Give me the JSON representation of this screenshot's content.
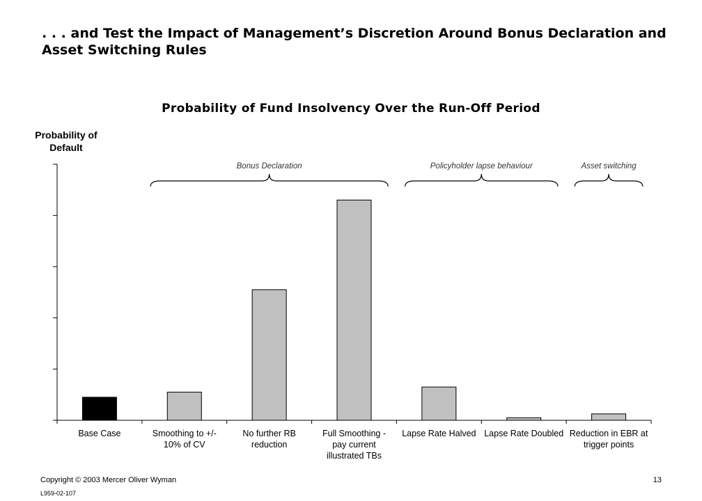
{
  "slide": {
    "title": ". . . and Test the Impact of Management’s Discretion Around Bonus Declaration and Asset Switching Rules"
  },
  "footer": {
    "copyright": "Copyright © 2003 Mercer Oliver Wyman",
    "reference": "L959-02-107",
    "page_number": "13"
  },
  "chart_data": {
    "type": "bar",
    "title": "Probability of Fund Insolvency Over the Run-Off Period",
    "ylabel": "Probability of Default",
    "xlabel": "",
    "ylim": [
      0,
      100
    ],
    "ytick_count": 5,
    "grid": false,
    "categories": [
      "Base Case",
      "Smoothing to +/- 10% of CV",
      "No further RB reduction",
      "Full Smoothing - pay current illustrated TBs",
      "Lapse Rate Halved",
      "Lapse Rate Doubled",
      "Reduction in EBR at trigger points"
    ],
    "category_lines": [
      [
        "Base Case"
      ],
      [
        "Smoothing to +/-",
        "10% of CV"
      ],
      [
        "No further RB",
        "reduction"
      ],
      [
        "Full Smoothing -",
        "pay current",
        "illustrated TBs"
      ],
      [
        "Lapse Rate Halved"
      ],
      [
        "Lapse Rate Doubled"
      ],
      [
        "Reduction in EBR at",
        "trigger points"
      ]
    ],
    "values": [
      9,
      11,
      51,
      86,
      13,
      1,
      2.5
    ],
    "bar_colors": [
      "#000000",
      "#c0c0c0",
      "#c0c0c0",
      "#c0c0c0",
      "#c0c0c0",
      "#c0c0c0",
      "#c0c0c0"
    ],
    "groups": [
      {
        "label": "Bonus Declaration",
        "from": 1,
        "to": 3
      },
      {
        "label": "Policyholder lapse behaviour",
        "from": 4,
        "to": 5
      },
      {
        "label": "Asset switching",
        "from": 6,
        "to": 6
      }
    ]
  }
}
